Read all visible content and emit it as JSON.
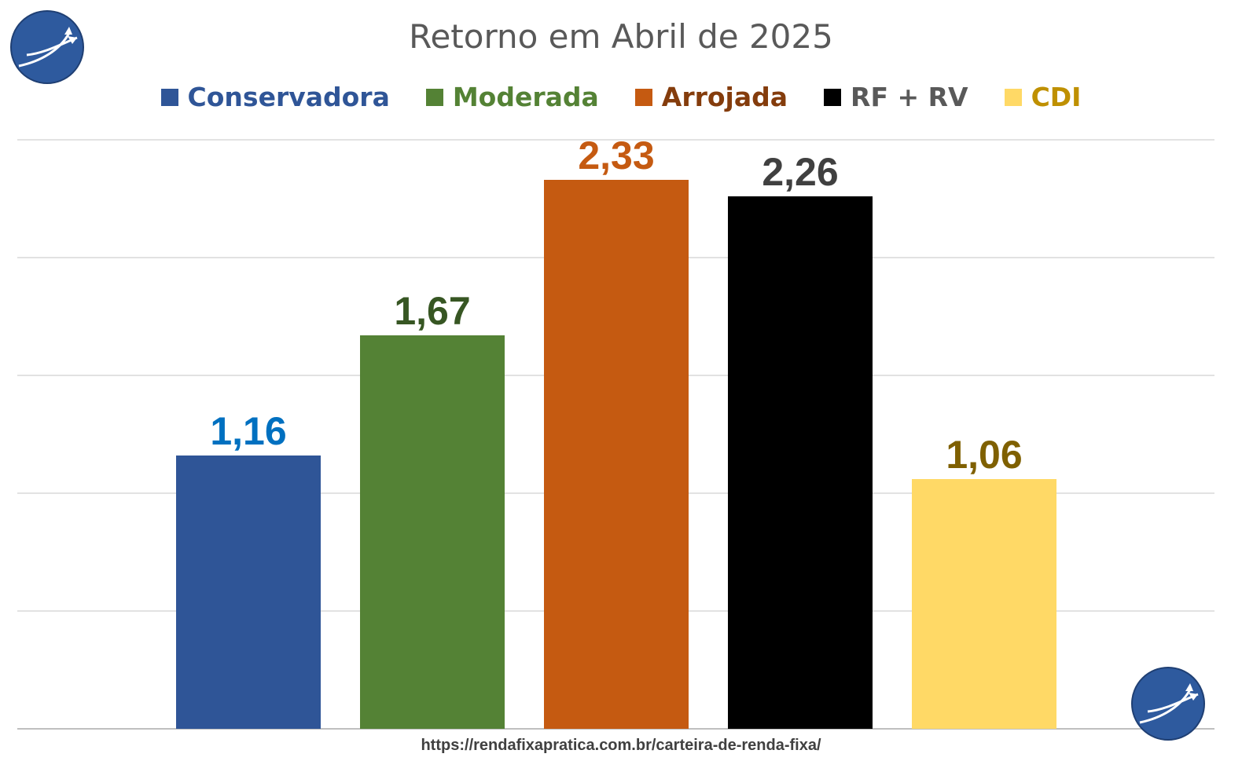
{
  "chart_data": {
    "type": "bar",
    "title": "Retorno em Abril de 2025",
    "categories": [
      "Conservadora",
      "Moderada",
      "Arrojada",
      "RF + RV",
      "CDI"
    ],
    "values": [
      1.16,
      1.67,
      2.33,
      2.26,
      1.06
    ],
    "value_labels": [
      "1,16",
      "1,67",
      "2,33",
      "2,26",
      "1,06"
    ],
    "bar_colors": [
      "#2F5597",
      "#548235",
      "#C55A11",
      "#000000",
      "#FFD966"
    ],
    "legend_text_colors": [
      "#2F5597",
      "#548235",
      "#843C0C",
      "#595959",
      "#BF9000"
    ],
    "label_colors": [
      "#0070C0",
      "#375623",
      "#C55A11",
      "#404040",
      "#7F6000"
    ],
    "ylim": [
      0,
      2.5
    ],
    "grid": true,
    "legend_position": "top",
    "xlabel": "",
    "ylabel": ""
  },
  "footer": {
    "url": "https://rendafixapratica.com.br/carteira-de-renda-fixa/"
  }
}
